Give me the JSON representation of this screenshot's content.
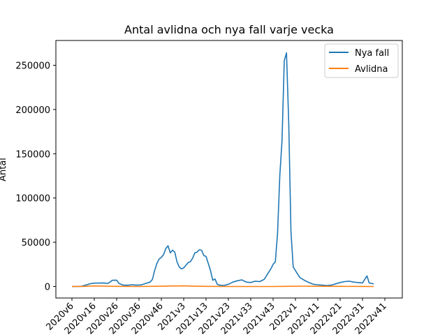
{
  "chart_data": {
    "type": "line",
    "title": "Antal avlidna och nya fall varje vecka",
    "xlabel": "",
    "ylabel": "Antal",
    "ylim": [
      -13000,
      278000
    ],
    "yticks": [
      0,
      50000,
      100000,
      150000,
      200000,
      250000
    ],
    "xticklabels": [
      "2020v6",
      "2020v16",
      "2020v26",
      "2020v36",
      "2020v46",
      "2021v3",
      "2021v13",
      "2021v23",
      "2021v33",
      "2021v43",
      "2022v1",
      "2022v11",
      "2022v21",
      "2022v31",
      "2022v41"
    ],
    "legend_position": "top-right",
    "colors": {
      "series0": "#1f77b4",
      "series1": "#ff7f0e"
    },
    "series": [
      {
        "name": "Nya fall",
        "points": [
          [
            "2020v6",
            0
          ],
          [
            "2020v8",
            0
          ],
          [
            "2020v10",
            200
          ],
          [
            "2020v11",
            800
          ],
          [
            "2020v12",
            1500
          ],
          [
            "2020v14",
            3000
          ],
          [
            "2020v15",
            3500
          ],
          [
            "2020v16",
            3800
          ],
          [
            "2020v18",
            3900
          ],
          [
            "2020v20",
            4000
          ],
          [
            "2020v22",
            3500
          ],
          [
            "2020v23",
            4800
          ],
          [
            "2020v24",
            7000
          ],
          [
            "2020v26",
            7200
          ],
          [
            "2020v27",
            3500
          ],
          [
            "2020v29",
            1500
          ],
          [
            "2020v31",
            1400
          ],
          [
            "2020v33",
            2000
          ],
          [
            "2020v35",
            1500
          ],
          [
            "2020v37",
            1800
          ],
          [
            "2020v39",
            3500
          ],
          [
            "2020v41",
            5000
          ],
          [
            "2020v42",
            8000
          ],
          [
            "2020v43",
            18000
          ],
          [
            "2020v44",
            26000
          ],
          [
            "2020v45",
            31000
          ],
          [
            "2020v46",
            33000
          ],
          [
            "2020v47",
            36000
          ],
          [
            "2020v48",
            43000
          ],
          [
            "2020v49",
            46000
          ],
          [
            "2020v50",
            38000
          ],
          [
            "2020v51",
            41000
          ],
          [
            "2020v52",
            39000
          ],
          [
            "2020v53",
            28000
          ],
          [
            "2021v1",
            22000
          ],
          [
            "2021v2",
            20000
          ],
          [
            "2021v3",
            21000
          ],
          [
            "2021v4",
            24000
          ],
          [
            "2021v5",
            27000
          ],
          [
            "2021v6",
            28000
          ],
          [
            "2021v7",
            32000
          ],
          [
            "2021v8",
            38000
          ],
          [
            "2021v9",
            39000
          ],
          [
            "2021v10",
            41500
          ],
          [
            "2021v11",
            41000
          ],
          [
            "2021v12",
            35000
          ],
          [
            "2021v13",
            34000
          ],
          [
            "2021v14",
            26000
          ],
          [
            "2021v15",
            18000
          ],
          [
            "2021v16",
            7000
          ],
          [
            "2021v17",
            8500
          ],
          [
            "2021v18",
            2500
          ],
          [
            "2021v19",
            1500
          ],
          [
            "2021v21",
            1200
          ],
          [
            "2021v23",
            2500
          ],
          [
            "2021v25",
            5000
          ],
          [
            "2021v27",
            6500
          ],
          [
            "2021v29",
            7500
          ],
          [
            "2021v31",
            5000
          ],
          [
            "2021v33",
            4500
          ],
          [
            "2021v35",
            6000
          ],
          [
            "2021v37",
            5500
          ],
          [
            "2021v39",
            8000
          ],
          [
            "2021v40",
            12000
          ],
          [
            "2021v42",
            20000
          ],
          [
            "2021v43",
            25000
          ],
          [
            "2021v44",
            28000
          ],
          [
            "2021v45",
            60000
          ],
          [
            "2021v46",
            125000
          ],
          [
            "2021v47",
            165000
          ],
          [
            "2021v48",
            255000
          ],
          [
            "2021v49",
            264000
          ],
          [
            "2021v50",
            185000
          ],
          [
            "2021v51",
            62000
          ],
          [
            "2021v52",
            22000
          ],
          [
            "2022v2",
            14000
          ],
          [
            "2022v3",
            10000
          ],
          [
            "2022v5",
            7000
          ],
          [
            "2022v7",
            4500
          ],
          [
            "2022v9",
            2500
          ],
          [
            "2022v11",
            2000
          ],
          [
            "2022v13",
            1500
          ],
          [
            "2022v15",
            1000
          ],
          [
            "2022v17",
            1500
          ],
          [
            "2022v19",
            3000
          ],
          [
            "2022v21",
            4500
          ],
          [
            "2022v23",
            5500
          ],
          [
            "2022v25",
            6000
          ],
          [
            "2022v27",
            5000
          ],
          [
            "2022v29",
            4500
          ],
          [
            "2022v31",
            4000
          ],
          [
            "2022v33",
            12000
          ],
          [
            "2022v34",
            4000
          ],
          [
            "2022v35",
            3500
          ],
          [
            "2022v36",
            3000
          ]
        ]
      },
      {
        "name": "Avlidna",
        "points": [
          [
            "2020v6",
            0
          ],
          [
            "2020v12",
            200
          ],
          [
            "2020v14",
            500
          ],
          [
            "2020v16",
            650
          ],
          [
            "2020v20",
            500
          ],
          [
            "2020v26",
            200
          ],
          [
            "2020v36",
            50
          ],
          [
            "2020v46",
            300
          ],
          [
            "2020v50",
            600
          ],
          [
            "2021v3",
            700
          ],
          [
            "2021v8",
            300
          ],
          [
            "2021v13",
            200
          ],
          [
            "2021v23",
            50
          ],
          [
            "2021v43",
            50
          ],
          [
            "2021v48",
            200
          ],
          [
            "2022v4",
            400
          ],
          [
            "2022v11",
            250
          ],
          [
            "2022v21",
            150
          ],
          [
            "2022v31",
            100
          ],
          [
            "2022v36",
            50
          ]
        ]
      }
    ]
  }
}
